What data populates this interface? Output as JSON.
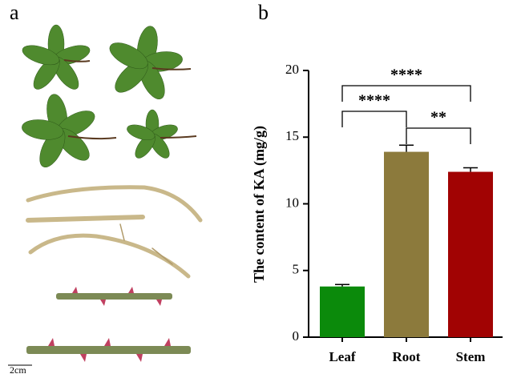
{
  "panel_labels": [
    "a",
    "b"
  ],
  "scale_bar": "2cm",
  "chart_data": {
    "type": "bar",
    "ylabel": "The content of KA (mg/g)",
    "categories": [
      "Leaf",
      "Root",
      "Stem"
    ],
    "values": [
      3.8,
      13.9,
      12.4
    ],
    "errors": [
      0.15,
      0.5,
      0.3
    ],
    "colors": [
      "#0b8a0b",
      "#8c7a3c",
      "#a10303"
    ],
    "ylim": [
      0,
      20
    ],
    "yticks": [
      0,
      5,
      10,
      15,
      20
    ],
    "grid": false,
    "annotations": [
      {
        "label": "**",
        "between": [
          "Root",
          "Stem"
        ]
      },
      {
        "label": "****",
        "between": [
          "Leaf",
          "Root"
        ]
      },
      {
        "label": "****",
        "between": [
          "Leaf",
          "Stem"
        ]
      }
    ]
  }
}
